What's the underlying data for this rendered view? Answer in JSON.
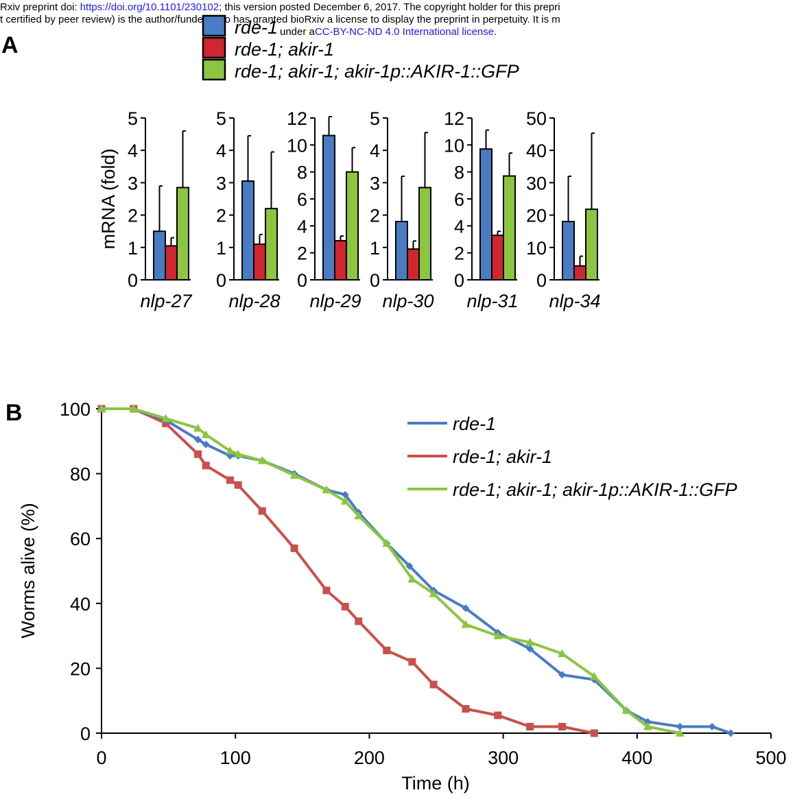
{
  "preprint_banner": {
    "line1_prefix": "Rxiv preprint doi: ",
    "doi_url": "https://doi.org/10.1101/230102",
    "line1_suffix": "; this version posted December 6, 2017. The copyright holder for this prepri",
    "line2": "t certified by peer review) is the author/funder, who has granted bioRxiv a license to display the preprint in perpetuity. It is m",
    "line3_prefix": "under a",
    "license_link": "CC-BY-NC-ND 4.0 International license",
    "line3_suffix": "."
  },
  "panel_labels": {
    "a": "A",
    "b": "B"
  },
  "colors": {
    "rde1": "#4a7cc4",
    "akir1": "#d0262f",
    "rescue": "#8cc540",
    "line_rde1": "#4a7cc4",
    "line_akir1": "#c9504b",
    "line_rescue": "#8cc540",
    "link": "#1a1aff"
  },
  "chart_data": [
    {
      "type": "bar",
      "panel": "A",
      "ylabel": "mRNA (fold)",
      "legend": [
        "rde-1",
        "rde-1; akir-1",
        "rde-1; akir-1; akir-1p::AKIR-1::GFP"
      ],
      "legend_placement": "top",
      "grid": false,
      "subplots": [
        {
          "gene": "nlp-27",
          "ylim": [
            0,
            5
          ],
          "yticks": [
            "0",
            "1",
            "2",
            "3",
            "4",
            "5"
          ],
          "values": [
            1.5,
            1.05,
            2.85
          ],
          "errors": [
            1.4,
            0.25,
            1.75
          ]
        },
        {
          "gene": "nlp-28",
          "ylim": [
            0,
            5
          ],
          "yticks": [
            "0",
            "1",
            "2",
            "3",
            "4",
            "5"
          ],
          "values": [
            3.05,
            1.1,
            2.2
          ],
          "errors": [
            1.4,
            0.3,
            1.75
          ]
        },
        {
          "gene": "nlp-29",
          "ylim": [
            0,
            12
          ],
          "yticks": [
            "0",
            "2",
            "4",
            "6",
            "8",
            "10",
            "12"
          ],
          "values": [
            10.7,
            2.9,
            8.0
          ],
          "errors": [
            1.4,
            0.35,
            1.8
          ]
        },
        {
          "gene": "nlp-30",
          "ylim": [
            0,
            5
          ],
          "yticks": [
            "0",
            "1",
            "2",
            "3",
            "4",
            "5"
          ],
          "values": [
            1.8,
            0.95,
            2.85
          ],
          "errors": [
            1.4,
            0.25,
            1.7
          ]
        },
        {
          "gene": "nlp-31",
          "ylim": [
            0,
            12
          ],
          "yticks": [
            "0",
            "2",
            "4",
            "6",
            "8",
            "10",
            "12"
          ],
          "values": [
            9.7,
            3.3,
            7.7
          ],
          "errors": [
            1.4,
            0.3,
            1.7
          ]
        },
        {
          "gene": "nlp-34",
          "ylim": [
            0,
            50
          ],
          "yticks": [
            "0",
            "10",
            "20",
            "30",
            "40",
            "50"
          ],
          "values": [
            18.0,
            4.3,
            21.8
          ],
          "errors": [
            14.0,
            3.0,
            23.5
          ]
        }
      ]
    },
    {
      "type": "line",
      "panel": "B",
      "xlabel": "Time (h)",
      "ylabel": "Worms alive (%)",
      "xlim": [
        0,
        500
      ],
      "ylim": [
        0,
        100
      ],
      "xticks": [
        "0",
        "100",
        "200",
        "300",
        "400",
        "500"
      ],
      "yticks": [
        "0",
        "20",
        "40",
        "60",
        "80",
        "100"
      ],
      "legend_placement": "top-right",
      "grid": false,
      "series": [
        {
          "name": "rde-1",
          "marker": "diamond",
          "x": [
            0,
            24,
            48,
            72,
            78,
            96,
            102,
            120,
            144,
            168,
            182,
            192,
            213,
            230,
            248,
            272,
            296,
            320,
            344,
            368,
            392,
            408,
            432,
            456,
            470
          ],
          "y": [
            100,
            100,
            96.5,
            90.5,
            89,
            85.5,
            85.5,
            84,
            80,
            75,
            73.5,
            68,
            58.5,
            51.5,
            44,
            38.5,
            31,
            26,
            18,
            16.5,
            7,
            3.5,
            2,
            2,
            0
          ]
        },
        {
          "name": "rde-1; akir-1",
          "marker": "square",
          "x": [
            0,
            24,
            48,
            72,
            78,
            96,
            102,
            120,
            144,
            168,
            182,
            192,
            213,
            232,
            248,
            272,
            296,
            320,
            344,
            368
          ],
          "y": [
            100,
            100,
            95.5,
            86,
            82.5,
            78,
            76.5,
            68.5,
            57,
            44,
            39,
            34.5,
            25.5,
            22,
            15,
            7.5,
            5.5,
            2,
            2,
            0
          ]
        },
        {
          "name": "rde-1; akir-1; akir-1p::AKIR-1::GFP",
          "marker": "triangle",
          "x": [
            0,
            24,
            48,
            72,
            78,
            96,
            102,
            120,
            144,
            168,
            182,
            192,
            213,
            232,
            248,
            272,
            296,
            320,
            344,
            368,
            392,
            408,
            432
          ],
          "y": [
            100,
            100,
            97,
            94,
            92,
            87,
            86,
            84,
            79.5,
            75,
            71.5,
            67,
            58.5,
            47.5,
            43,
            33.5,
            30,
            28,
            24.5,
            17.5,
            7,
            2,
            0
          ]
        }
      ]
    }
  ]
}
